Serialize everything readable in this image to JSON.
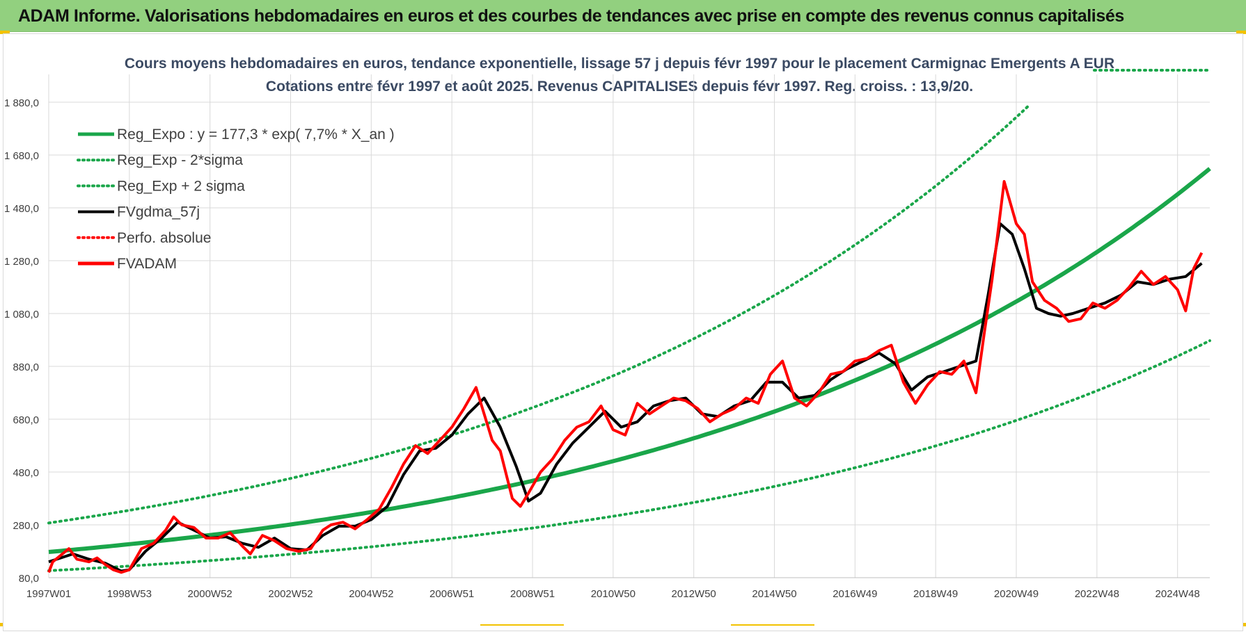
{
  "header": {
    "title": "ADAM Informe. Valorisations hebdomadaires en euros et des courbes de tendances avec prise en compte des revenus connus capitalisés"
  },
  "colors": {
    "header_bg": "#92d07f",
    "trend_green": "#1aa64a",
    "dotted_green": "#1aa64a",
    "fvgdma_black": "#000000",
    "fvadam_red": "#ff0000",
    "perfo_red": "#ff0000",
    "grid": "#d9d9d9",
    "axis_text": "#404040",
    "chart_title": "#3b4a63"
  },
  "chart_data": {
    "type": "line",
    "title_line1": "Cours moyens hebdomadaires en euros, tendance exponentielle, lissage 57 j depuis févr 1997 pour le placement Carmignac Emergents A EUR",
    "title_line2": "Cotations entre févr 1997 et août 2025. Revenus CAPITALISES depuis févr 1997. Reg. croiss. : 13,9/20.",
    "x_tick_labels": [
      "1997W01",
      "1998W53",
      "2000W52",
      "2002W52",
      "2004W52",
      "2006W51",
      "2008W51",
      "2010W50",
      "2012W50",
      "2014W50",
      "2016W49",
      "2018W49",
      "2020W49",
      "2022W48",
      "2024W48"
    ],
    "x_tick_years": [
      1997.0,
      1999.0,
      2001.0,
      2003.0,
      2005.0,
      2007.0,
      2009.0,
      2011.0,
      2013.0,
      2015.0,
      2017.0,
      2019.0,
      2021.0,
      2023.0,
      2025.0
    ],
    "y_tick_labels": [
      "80,0",
      "280,0",
      "480,0",
      "680,0",
      "880,0",
      "1 080,0",
      "1 280,0",
      "1 480,0",
      "1 680,0",
      "1 880,0"
    ],
    "y_ticks": [
      80,
      280,
      480,
      680,
      880,
      1080,
      1280,
      1480,
      1680,
      1880
    ],
    "ylim": [
      80,
      1880
    ],
    "xlim": [
      1997.0,
      2025.8
    ],
    "legend_placement": "top-left",
    "grid": true,
    "legend": [
      {
        "label": "Reg_Expo : y = 177,3 * exp( 7,7% *  X_an )",
        "style": "solid-thick",
        "color": "#1aa64a"
      },
      {
        "label": "Reg_Exp - 2*sigma",
        "style": "dotted",
        "color": "#1aa64a"
      },
      {
        "label": "Reg_Exp + 2 sigma",
        "style": "dotted",
        "color": "#1aa64a"
      },
      {
        "label": "FVgdma_57j",
        "style": "solid",
        "color": "#000000"
      },
      {
        "label": "Perfo. absolue",
        "style": "dotted",
        "color": "#ff0000"
      },
      {
        "label": "FVADAM",
        "style": "solid-thick",
        "color": "#ff0000"
      }
    ],
    "regression": {
      "a": 177.3,
      "rate": 0.077,
      "start_year": 1997.0
    },
    "sigma_band": {
      "lower_factor": 0.6,
      "upper_factor": 1.62
    },
    "series": [
      {
        "name": "FVADAM",
        "x": [
          1997.0,
          1997.1,
          1997.3,
          1997.5,
          1997.7,
          1998.0,
          1998.2,
          1998.4,
          1998.6,
          1998.8,
          1999.0,
          1999.3,
          1999.6,
          1999.9,
          2000.1,
          2000.3,
          2000.6,
          2000.9,
          2001.2,
          2001.5,
          2001.8,
          2002.0,
          2002.3,
          2002.6,
          2002.9,
          2003.2,
          2003.5,
          2003.8,
          2004.0,
          2004.3,
          2004.6,
          2004.9,
          2005.2,
          2005.5,
          2005.8,
          2006.1,
          2006.4,
          2006.7,
          2007.0,
          2007.3,
          2007.6,
          2007.8,
          2008.0,
          2008.2,
          2008.5,
          2008.7,
          2008.9,
          2009.2,
          2009.5,
          2009.8,
          2010.1,
          2010.4,
          2010.7,
          2011.0,
          2011.3,
          2011.6,
          2011.9,
          2012.2,
          2012.5,
          2012.8,
          2013.1,
          2013.4,
          2013.7,
          2014.0,
          2014.3,
          2014.6,
          2014.9,
          2015.2,
          2015.5,
          2015.8,
          2016.1,
          2016.4,
          2016.7,
          2017.0,
          2017.3,
          2017.6,
          2017.9,
          2018.2,
          2018.5,
          2018.8,
          2019.1,
          2019.4,
          2019.7,
          2020.0,
          2020.2,
          2020.4,
          2020.7,
          2021.0,
          2021.2,
          2021.4,
          2021.7,
          2022.0,
          2022.3,
          2022.6,
          2022.9,
          2023.2,
          2023.5,
          2023.8,
          2024.1,
          2024.4,
          2024.7,
          2025.0,
          2025.2,
          2025.4,
          2025.6
        ],
        "y": [
          100,
          140,
          165,
          190,
          150,
          140,
          155,
          130,
          110,
          100,
          110,
          190,
          210,
          260,
          310,
          280,
          270,
          230,
          230,
          250,
          200,
          170,
          240,
          220,
          190,
          180,
          190,
          260,
          280,
          290,
          265,
          300,
          340,
          420,
          510,
          580,
          550,
          600,
          650,
          720,
          800,
          700,
          600,
          560,
          380,
          350,
          400,
          480,
          530,
          600,
          650,
          670,
          730,
          640,
          620,
          740,
          700,
          730,
          760,
          750,
          720,
          670,
          700,
          720,
          760,
          740,
          850,
          900,
          760,
          730,
          780,
          850,
          860,
          900,
          910,
          940,
          960,
          820,
          740,
          810,
          860,
          850,
          900,
          780,
          1000,
          1210,
          1580,
          1420,
          1380,
          1200,
          1130,
          1100,
          1050,
          1060,
          1120,
          1100,
          1130,
          1180,
          1240,
          1190,
          1220,
          1170,
          1090,
          1250,
          1310
        ]
      },
      {
        "name": "FVgdma_57j",
        "x": [
          1997.0,
          1997.3,
          1997.6,
          1998.0,
          1998.4,
          1998.8,
          1999.0,
          1999.4,
          1999.8,
          2000.2,
          2000.6,
          2001.0,
          2001.4,
          2001.8,
          2002.2,
          2002.6,
          2003.0,
          2003.4,
          2003.8,
          2004.2,
          2004.6,
          2005.0,
          2005.4,
          2005.8,
          2006.2,
          2006.6,
          2007.0,
          2007.4,
          2007.8,
          2008.2,
          2008.6,
          2008.9,
          2009.2,
          2009.6,
          2010.0,
          2010.4,
          2010.8,
          2011.2,
          2011.6,
          2012.0,
          2012.4,
          2012.8,
          2013.2,
          2013.6,
          2014.0,
          2014.4,
          2014.8,
          2015.2,
          2015.6,
          2016.0,
          2016.4,
          2016.8,
          2017.2,
          2017.6,
          2018.0,
          2018.4,
          2018.8,
          2019.2,
          2019.6,
          2020.0,
          2020.3,
          2020.6,
          2020.9,
          2021.2,
          2021.5,
          2021.8,
          2022.1,
          2022.4,
          2022.8,
          2023.2,
          2023.6,
          2024.0,
          2024.4,
          2024.8,
          2025.2,
          2025.6
        ],
        "y": [
          140,
          155,
          170,
          150,
          135,
          105,
          110,
          180,
          230,
          290,
          260,
          230,
          235,
          210,
          195,
          230,
          190,
          185,
          240,
          275,
          275,
          300,
          350,
          470,
          560,
          570,
          620,
          700,
          760,
          650,
          500,
          370,
          400,
          510,
          590,
          650,
          710,
          650,
          670,
          730,
          750,
          760,
          700,
          690,
          730,
          750,
          820,
          820,
          760,
          770,
          830,
          870,
          900,
          930,
          890,
          790,
          840,
          860,
          880,
          900,
          1150,
          1420,
          1380,
          1250,
          1100,
          1080,
          1070,
          1080,
          1100,
          1120,
          1150,
          1200,
          1190,
          1210,
          1220,
          1270
        ]
      }
    ]
  }
}
